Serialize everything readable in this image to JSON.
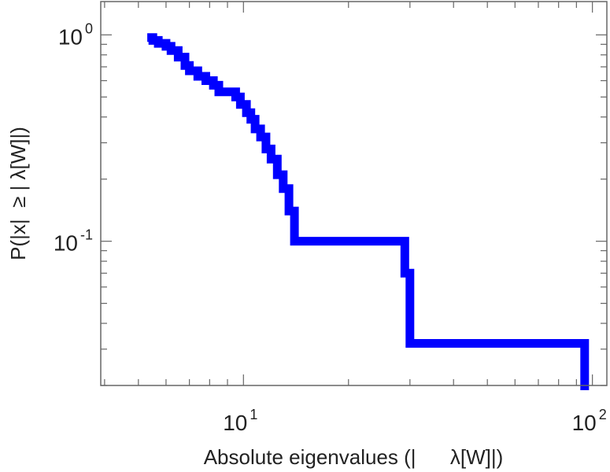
{
  "chart_data": {
    "type": "line",
    "step": "ccdf",
    "xlabel": "Absolute eigenvalues (|      λ[W]|)",
    "ylabel": "P(|x|  ≥ | λ[W]|)",
    "x_scale": "log",
    "y_scale": "log",
    "xlim": [
      3.9,
      110
    ],
    "ylim": [
      0.02,
      1.45
    ],
    "x_ticks": [
      {
        "value": 10,
        "base": "10",
        "exp": "1"
      },
      {
        "value": 100,
        "base": "10",
        "exp": "2"
      }
    ],
    "y_ticks": [
      {
        "value": 1,
        "base": "10",
        "exp": "0"
      },
      {
        "value": 0.1,
        "base": "10",
        "exp": "-1"
      }
    ],
    "grid": false,
    "color": "#0000ff",
    "series": [
      {
        "x": [
          5.3,
          5.5,
          5.7,
          6.0,
          6.2,
          6.5,
          6.8,
          7.0,
          7.4,
          7.8,
          8.2,
          8.5,
          9.5,
          9.8,
          10.2,
          10.5,
          10.8,
          11.2,
          11.6,
          12.0,
          12.5,
          13.0,
          13.5,
          14.0,
          29.0,
          30.0,
          95.0
        ],
        "y": [
          0.97,
          0.94,
          0.91,
          0.88,
          0.84,
          0.78,
          0.71,
          0.67,
          0.63,
          0.6,
          0.57,
          0.53,
          0.5,
          0.46,
          0.42,
          0.39,
          0.35,
          0.32,
          0.28,
          0.25,
          0.21,
          0.18,
          0.14,
          0.1,
          0.07,
          0.032,
          0.02
        ]
      }
    ]
  }
}
